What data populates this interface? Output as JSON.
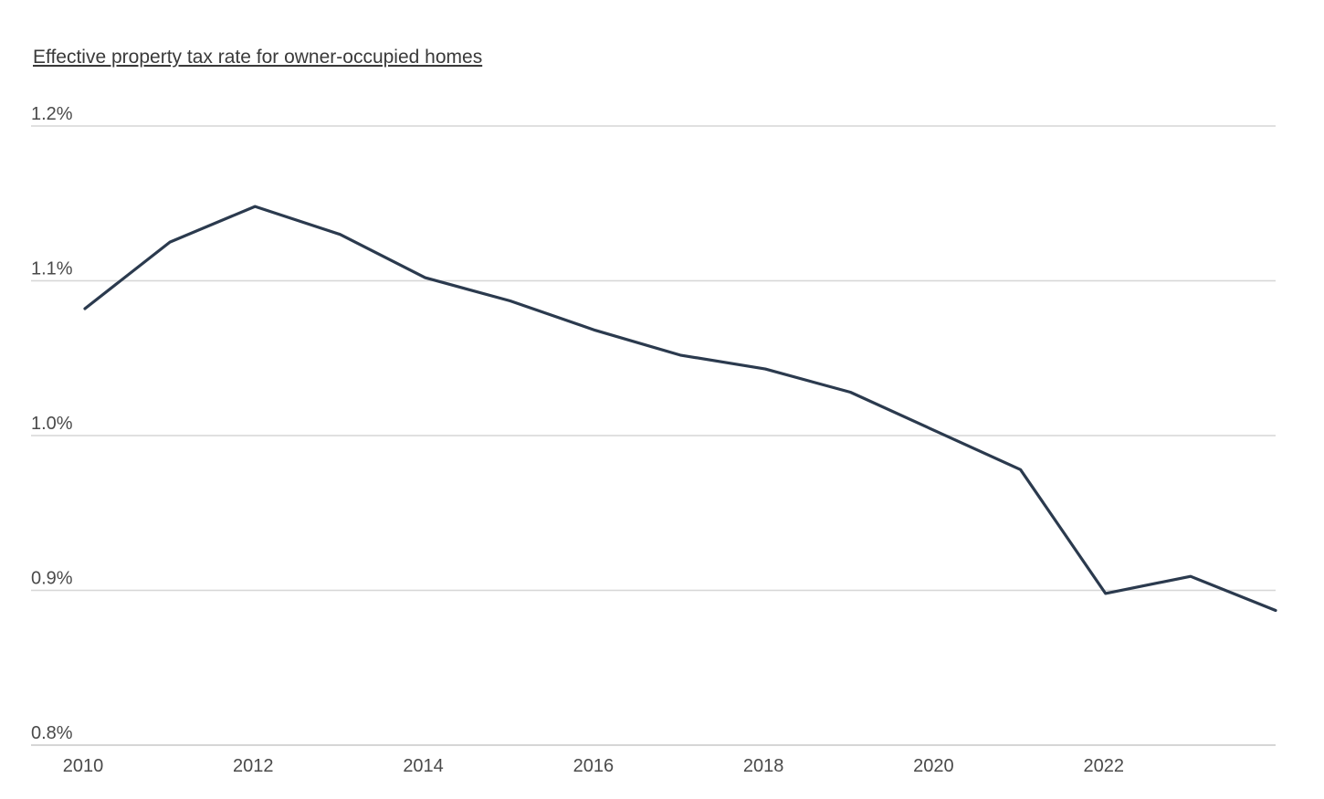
{
  "chart_data": {
    "type": "line",
    "title": "Effective property tax rate for owner-occupied homes",
    "xlabel": "",
    "ylabel": "",
    "x": [
      2010,
      2011,
      2012,
      2013,
      2014,
      2015,
      2016,
      2017,
      2018,
      2019,
      2020,
      2021,
      2022,
      2023,
      2024
    ],
    "series": [
      {
        "values": [
          1.082,
          1.125,
          1.148,
          1.13,
          1.102,
          1.087,
          1.068,
          1.052,
          1.043,
          1.028,
          1.003,
          0.978,
          0.898,
          0.909,
          0.887
        ]
      }
    ],
    "xlim": [
      2010,
      2024
    ],
    "ylim": [
      0.8,
      1.2
    ],
    "x_ticks": [
      "2010",
      "2012",
      "2014",
      "2016",
      "2018",
      "2020",
      "2022"
    ],
    "x_tick_values": [
      2010,
      2012,
      2014,
      2016,
      2018,
      2020,
      2022
    ],
    "y_ticks": [
      "1.2%",
      "1.1%",
      "1.0%",
      "0.9%",
      "0.8%"
    ],
    "y_tick_values": [
      1.2,
      1.1,
      1.0,
      0.9,
      0.8
    ],
    "grid": true,
    "legend": "none",
    "colors": {
      "line": "#2b3a4e",
      "grid": "#d6d6d6",
      "text": "#4a4a4a"
    }
  }
}
